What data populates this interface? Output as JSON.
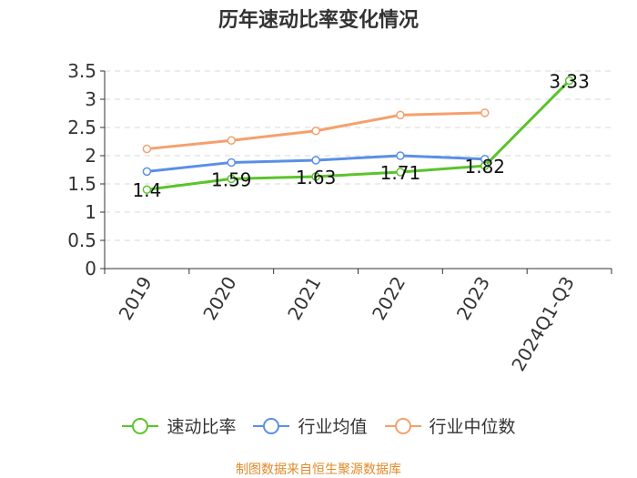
{
  "chart_data": {
    "type": "line",
    "title": "历年速动比率变化情况",
    "categories": [
      "2019",
      "2020",
      "2021",
      "2022",
      "2023",
      "2024Q1-Q3"
    ],
    "ylim": [
      0,
      3.5
    ],
    "yticks": [
      "0",
      "0.5",
      "1",
      "1.5",
      "2",
      "2.5",
      "3",
      "3.5"
    ],
    "grid": true,
    "legend_position": "bottom",
    "series": [
      {
        "name": "速动比率",
        "color": "#5ac42b",
        "values": [
          1.4,
          1.59,
          1.63,
          1.71,
          1.82,
          3.33
        ],
        "labeled": true
      },
      {
        "name": "行业均值",
        "color": "#5b8fe6",
        "values": [
          1.72,
          1.88,
          1.92,
          2.0,
          1.94,
          null
        ],
        "labeled": false
      },
      {
        "name": "行业中位数",
        "color": "#f5a06c",
        "values": [
          2.12,
          2.27,
          2.44,
          2.72,
          2.76,
          null
        ],
        "labeled": false
      }
    ],
    "data_labels": [
      "1.4",
      "1.59",
      "1.63",
      "1.71",
      "1.82",
      "3.33"
    ]
  },
  "source_text": "制图数据来自恒生聚源数据库",
  "source_color": "#e08a2a"
}
